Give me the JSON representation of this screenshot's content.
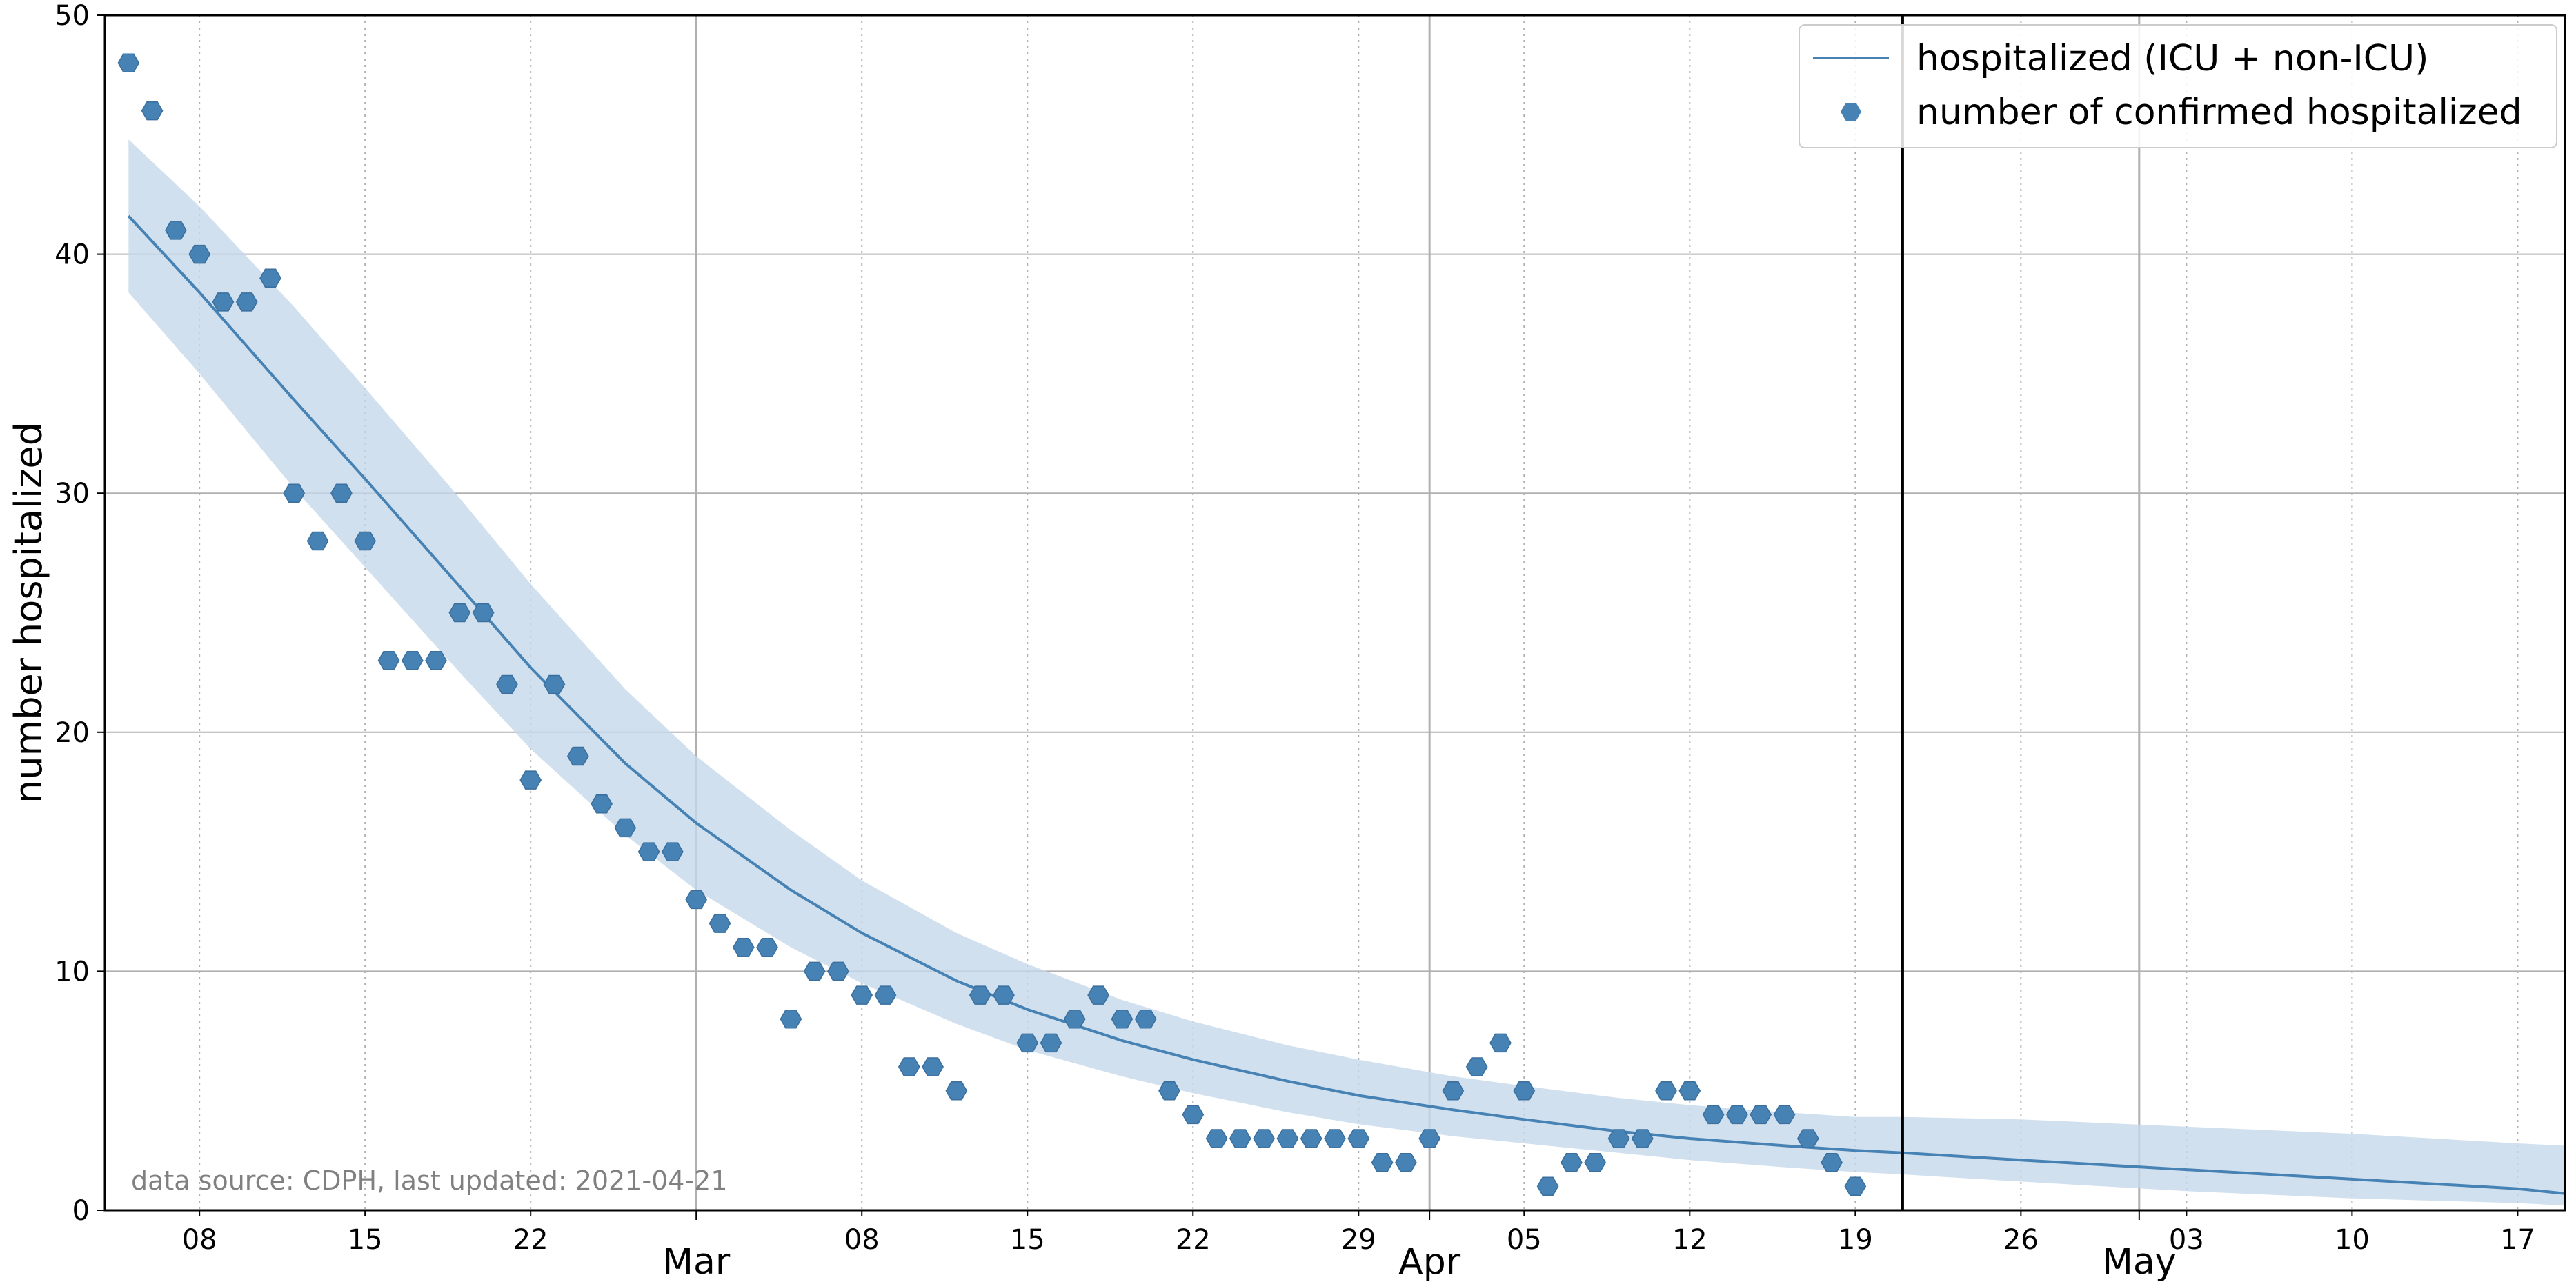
{
  "chart_data": {
    "type": "line",
    "title": "",
    "xlabel": "",
    "ylabel": "number hospitalized",
    "ylim": [
      0,
      50
    ],
    "xlim": [
      "2021-02-04",
      "2021-05-19"
    ],
    "y_ticks": [
      0,
      10,
      20,
      30,
      40,
      50
    ],
    "x_minor_ticks": [
      {
        "date": "2021-02-08",
        "label": "08"
      },
      {
        "date": "2021-02-15",
        "label": "15"
      },
      {
        "date": "2021-02-22",
        "label": "22"
      },
      {
        "date": "2021-03-08",
        "label": "08"
      },
      {
        "date": "2021-03-15",
        "label": "15"
      },
      {
        "date": "2021-03-22",
        "label": "22"
      },
      {
        "date": "2021-03-29",
        "label": "29"
      },
      {
        "date": "2021-04-05",
        "label": "05"
      },
      {
        "date": "2021-04-12",
        "label": "12"
      },
      {
        "date": "2021-04-19",
        "label": "19"
      },
      {
        "date": "2021-04-26",
        "label": "26"
      },
      {
        "date": "2021-05-03",
        "label": "03"
      },
      {
        "date": "2021-05-10",
        "label": "10"
      },
      {
        "date": "2021-05-17",
        "label": "17"
      }
    ],
    "x_major_ticks": [
      {
        "date": "2021-03-01",
        "label": "Mar"
      },
      {
        "date": "2021-04-01",
        "label": "Apr"
      },
      {
        "date": "2021-05-01",
        "label": "May"
      }
    ],
    "grid": true,
    "legend_position": "top-right",
    "colors": {
      "series": "#4682b4",
      "band": "#c6d8ea",
      "grid": "#b0b0b0",
      "vline": "#000000"
    },
    "vertical_line": {
      "date": "2021-04-21"
    },
    "annotation": "data source: CDPH, last updated: 2021-04-21",
    "series": [
      {
        "name": "hospitalized (ICU + non-ICU)",
        "kind": "line",
        "points": [
          [
            "2021-02-05",
            41.6
          ],
          [
            "2021-02-08",
            38.4
          ],
          [
            "2021-02-12",
            33.9
          ],
          [
            "2021-02-15",
            30.6
          ],
          [
            "2021-02-19",
            26.1
          ],
          [
            "2021-02-22",
            22.7
          ],
          [
            "2021-02-26",
            18.7
          ],
          [
            "2021-03-01",
            16.2
          ],
          [
            "2021-03-05",
            13.4
          ],
          [
            "2021-03-08",
            11.6
          ],
          [
            "2021-03-12",
            9.6
          ],
          [
            "2021-03-15",
            8.4
          ],
          [
            "2021-03-19",
            7.1
          ],
          [
            "2021-03-22",
            6.3
          ],
          [
            "2021-03-26",
            5.4
          ],
          [
            "2021-03-29",
            4.8
          ],
          [
            "2021-04-02",
            4.2
          ],
          [
            "2021-04-05",
            3.8
          ],
          [
            "2021-04-09",
            3.3
          ],
          [
            "2021-04-12",
            3.0
          ],
          [
            "2021-04-16",
            2.7
          ],
          [
            "2021-04-19",
            2.5
          ],
          [
            "2021-04-21",
            2.4
          ],
          [
            "2021-04-26",
            2.1
          ],
          [
            "2021-05-03",
            1.7
          ],
          [
            "2021-05-10",
            1.3
          ],
          [
            "2021-05-17",
            0.9
          ],
          [
            "2021-05-19",
            0.7
          ]
        ],
        "band_upper": [
          [
            "2021-02-05",
            44.8
          ],
          [
            "2021-02-08",
            42.0
          ],
          [
            "2021-02-12",
            37.8
          ],
          [
            "2021-02-15",
            34.4
          ],
          [
            "2021-02-19",
            29.8
          ],
          [
            "2021-02-22",
            26.2
          ],
          [
            "2021-02-26",
            21.8
          ],
          [
            "2021-03-01",
            19.0
          ],
          [
            "2021-03-05",
            15.9
          ],
          [
            "2021-03-08",
            13.8
          ],
          [
            "2021-03-12",
            11.6
          ],
          [
            "2021-03-15",
            10.3
          ],
          [
            "2021-03-19",
            8.8
          ],
          [
            "2021-03-22",
            7.9
          ],
          [
            "2021-03-26",
            6.9
          ],
          [
            "2021-03-29",
            6.3
          ],
          [
            "2021-04-02",
            5.6
          ],
          [
            "2021-04-05",
            5.2
          ],
          [
            "2021-04-09",
            4.7
          ],
          [
            "2021-04-12",
            4.4
          ],
          [
            "2021-04-16",
            4.1
          ],
          [
            "2021-04-19",
            3.9
          ],
          [
            "2021-04-21",
            3.9
          ],
          [
            "2021-04-26",
            3.8
          ],
          [
            "2021-05-03",
            3.5
          ],
          [
            "2021-05-10",
            3.2
          ],
          [
            "2021-05-17",
            2.8
          ],
          [
            "2021-05-19",
            2.7
          ]
        ],
        "band_lower": [
          [
            "2021-02-05",
            38.4
          ],
          [
            "2021-02-08",
            35.0
          ],
          [
            "2021-02-12",
            30.2
          ],
          [
            "2021-02-15",
            26.9
          ],
          [
            "2021-02-19",
            22.5
          ],
          [
            "2021-02-22",
            19.3
          ],
          [
            "2021-02-26",
            15.7
          ],
          [
            "2021-03-01",
            13.4
          ],
          [
            "2021-03-05",
            11.0
          ],
          [
            "2021-03-08",
            9.5
          ],
          [
            "2021-03-12",
            7.8
          ],
          [
            "2021-03-15",
            6.7
          ],
          [
            "2021-03-19",
            5.6
          ],
          [
            "2021-03-22",
            4.9
          ],
          [
            "2021-03-26",
            4.1
          ],
          [
            "2021-03-29",
            3.6
          ],
          [
            "2021-04-02",
            3.1
          ],
          [
            "2021-04-05",
            2.8
          ],
          [
            "2021-04-09",
            2.4
          ],
          [
            "2021-04-12",
            2.1
          ],
          [
            "2021-04-16",
            1.8
          ],
          [
            "2021-04-19",
            1.6
          ],
          [
            "2021-04-21",
            1.5
          ],
          [
            "2021-04-26",
            1.2
          ],
          [
            "2021-05-03",
            0.8
          ],
          [
            "2021-05-10",
            0.5
          ],
          [
            "2021-05-17",
            0.3
          ],
          [
            "2021-05-19",
            0.2
          ]
        ]
      },
      {
        "name": "number of confirmed hospitalized",
        "kind": "scatter",
        "points": [
          [
            "2021-02-05",
            48
          ],
          [
            "2021-02-06",
            46
          ],
          [
            "2021-02-07",
            41
          ],
          [
            "2021-02-08",
            40
          ],
          [
            "2021-02-09",
            38
          ],
          [
            "2021-02-10",
            38
          ],
          [
            "2021-02-11",
            39
          ],
          [
            "2021-02-12",
            30
          ],
          [
            "2021-02-13",
            28
          ],
          [
            "2021-02-14",
            30
          ],
          [
            "2021-02-15",
            28
          ],
          [
            "2021-02-16",
            23
          ],
          [
            "2021-02-17",
            23
          ],
          [
            "2021-02-18",
            23
          ],
          [
            "2021-02-19",
            25
          ],
          [
            "2021-02-20",
            25
          ],
          [
            "2021-02-21",
            22
          ],
          [
            "2021-02-22",
            18
          ],
          [
            "2021-02-23",
            22
          ],
          [
            "2021-02-24",
            19
          ],
          [
            "2021-02-25",
            17
          ],
          [
            "2021-02-26",
            16
          ],
          [
            "2021-02-27",
            15
          ],
          [
            "2021-02-28",
            15
          ],
          [
            "2021-03-01",
            13
          ],
          [
            "2021-03-02",
            12
          ],
          [
            "2021-03-03",
            11
          ],
          [
            "2021-03-04",
            11
          ],
          [
            "2021-03-05",
            8
          ],
          [
            "2021-03-06",
            10
          ],
          [
            "2021-03-07",
            10
          ],
          [
            "2021-03-08",
            9
          ],
          [
            "2021-03-09",
            9
          ],
          [
            "2021-03-10",
            6
          ],
          [
            "2021-03-11",
            6
          ],
          [
            "2021-03-12",
            5
          ],
          [
            "2021-03-13",
            9
          ],
          [
            "2021-03-14",
            9
          ],
          [
            "2021-03-15",
            7
          ],
          [
            "2021-03-16",
            7
          ],
          [
            "2021-03-17",
            8
          ],
          [
            "2021-03-18",
            9
          ],
          [
            "2021-03-19",
            8
          ],
          [
            "2021-03-20",
            8
          ],
          [
            "2021-03-21",
            5
          ],
          [
            "2021-03-22",
            4
          ],
          [
            "2021-03-23",
            3
          ],
          [
            "2021-03-24",
            3
          ],
          [
            "2021-03-25",
            3
          ],
          [
            "2021-03-26",
            3
          ],
          [
            "2021-03-27",
            3
          ],
          [
            "2021-03-28",
            3
          ],
          [
            "2021-03-29",
            3
          ],
          [
            "2021-03-30",
            2
          ],
          [
            "2021-03-31",
            2
          ],
          [
            "2021-04-01",
            3
          ],
          [
            "2021-04-02",
            5
          ],
          [
            "2021-04-03",
            6
          ],
          [
            "2021-04-04",
            7
          ],
          [
            "2021-04-05",
            5
          ],
          [
            "2021-04-06",
            1
          ],
          [
            "2021-04-07",
            2
          ],
          [
            "2021-04-08",
            2
          ],
          [
            "2021-04-09",
            3
          ],
          [
            "2021-04-10",
            3
          ],
          [
            "2021-04-11",
            5
          ],
          [
            "2021-04-12",
            5
          ],
          [
            "2021-04-13",
            4
          ],
          [
            "2021-04-14",
            4
          ],
          [
            "2021-04-15",
            4
          ],
          [
            "2021-04-16",
            4
          ],
          [
            "2021-04-17",
            3
          ],
          [
            "2021-04-18",
            2
          ],
          [
            "2021-04-19",
            1
          ]
        ]
      }
    ]
  }
}
